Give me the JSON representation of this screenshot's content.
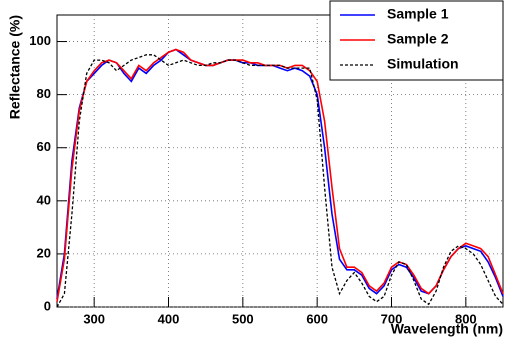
{
  "chart_data": {
    "type": "line",
    "xlabel": "Wavelength (nm)",
    "ylabel": "Reflectance (%)",
    "x": [
      250,
      260,
      270,
      280,
      290,
      300,
      310,
      320,
      330,
      340,
      350,
      360,
      370,
      380,
      390,
      400,
      410,
      420,
      430,
      440,
      450,
      460,
      470,
      480,
      490,
      500,
      510,
      520,
      530,
      540,
      550,
      560,
      570,
      580,
      590,
      600,
      610,
      620,
      630,
      640,
      650,
      660,
      670,
      680,
      690,
      700,
      710,
      720,
      730,
      740,
      750,
      760,
      770,
      780,
      790,
      800,
      810,
      820,
      830,
      840,
      850
    ],
    "series": [
      {
        "name": "Sample 1",
        "color": "#0000ff",
        "dashed": false,
        "values": [
          3,
          20,
          55,
          75,
          85,
          88,
          91,
          93,
          92,
          88,
          85,
          90,
          88,
          91,
          93,
          96,
          97,
          95,
          93,
          92,
          91,
          91,
          92,
          93,
          93,
          92,
          92,
          91,
          91,
          91,
          90,
          89,
          90,
          89,
          87,
          80,
          60,
          35,
          18,
          14,
          14,
          12,
          7,
          5,
          8,
          14,
          16,
          15,
          11,
          6,
          5,
          8,
          14,
          19,
          22,
          23,
          22,
          21,
          17,
          11,
          4
        ]
      },
      {
        "name": "Sample 2",
        "color": "#ff0000",
        "dashed": false,
        "values": [
          2,
          18,
          52,
          74,
          85,
          89,
          92,
          93,
          92,
          89,
          86,
          91,
          89,
          92,
          94,
          96,
          97,
          96,
          93,
          92,
          91,
          91,
          92,
          93,
          93,
          93,
          92,
          92,
          91,
          91,
          91,
          90,
          91,
          91,
          89,
          85,
          70,
          45,
          22,
          15,
          15,
          13,
          8,
          6,
          9,
          15,
          17,
          16,
          12,
          7,
          5,
          8,
          14,
          19,
          22,
          24,
          23,
          22,
          19,
          12,
          5
        ]
      },
      {
        "name": "Simulation",
        "color": "#000000",
        "dashed": true,
        "values": [
          0,
          5,
          35,
          70,
          88,
          93,
          93,
          92,
          89,
          91,
          93,
          94,
          95,
          95,
          93,
          91,
          92,
          93,
          92,
          91,
          91,
          92,
          92,
          93,
          93,
          92,
          91,
          91,
          91,
          91,
          91,
          90,
          90,
          90,
          90,
          78,
          45,
          15,
          5,
          10,
          13,
          9,
          4,
          2,
          4,
          12,
          17,
          16,
          10,
          3,
          1,
          6,
          15,
          21,
          23,
          22,
          20,
          16,
          10,
          4,
          1
        ]
      }
    ],
    "xlim": [
      250,
      850
    ],
    "xticks": [
      300,
      400,
      500,
      600,
      700,
      800
    ],
    "ylim": [
      0,
      110
    ],
    "yticks": [
      0,
      20,
      40,
      60,
      80,
      100
    ],
    "grid": true,
    "legend": "upper right"
  }
}
